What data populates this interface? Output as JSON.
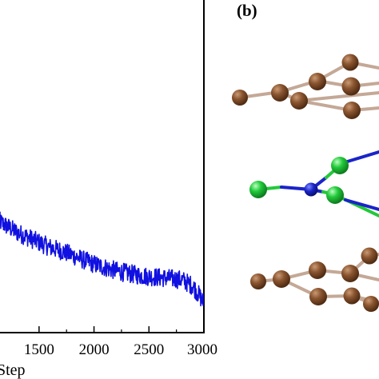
{
  "figure": {
    "panel_b_label": "(b)"
  },
  "chart_data": {
    "type": "line",
    "xlabel": "Step",
    "x_ticks": [
      1500,
      2000,
      2500,
      3000
    ],
    "x_tick_labels": [
      "1500",
      "2000",
      "2500",
      "3000"
    ],
    "xlim": [
      1130,
      3000
    ],
    "ylim": [
      0,
      1
    ],
    "grid": false,
    "series": [
      {
        "color": "#1010e0",
        "x": [
          1130,
          1200,
          1300,
          1400,
          1500,
          1600,
          1700,
          1800,
          1900,
          2000,
          2100,
          2200,
          2300,
          2400,
          2500,
          2600,
          2700,
          2800,
          2900,
          2950,
          3000
        ],
        "values": [
          0.335,
          0.32,
          0.3,
          0.285,
          0.27,
          0.255,
          0.245,
          0.232,
          0.218,
          0.205,
          0.195,
          0.185,
          0.178,
          0.172,
          0.168,
          0.165,
          0.162,
          0.158,
          0.14,
          0.115,
          0.09
        ],
        "noise": 0.028
      }
    ]
  },
  "molecule": {
    "colors": {
      "carbon": "#7a4a28",
      "nitrogen": "#1a24c8",
      "chlorine": "#22c93a",
      "bond_carbon": "#c4a896"
    }
  }
}
